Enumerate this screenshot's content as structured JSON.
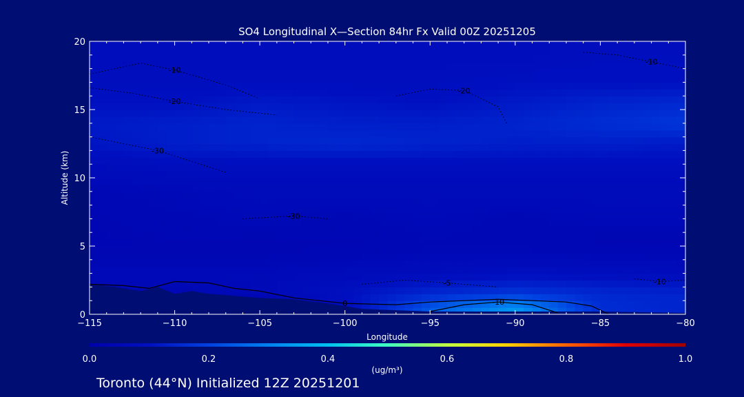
{
  "chart_data": {
    "type": "heatmap",
    "title": "SO4 Longitudinal X—Section 84hr  Fx Valid 00Z 20251205",
    "xlabel": "Longitude",
    "ylabel": "Altitude (km)",
    "xlim": [
      -115,
      -80
    ],
    "ylim": [
      0,
      20
    ],
    "x_ticks": [
      -115,
      -110,
      -105,
      -100,
      -95,
      -90,
      -85,
      -80
    ],
    "x_tick_labels": [
      "−115",
      "−110",
      "−105",
      "−100",
      "−95",
      "−90",
      "−85",
      "−80"
    ],
    "y_ticks": [
      0,
      5,
      10,
      15,
      20
    ],
    "y_tick_labels": [
      "0",
      "5",
      "10",
      "15",
      "20"
    ],
    "grid": false,
    "colorbar": {
      "min": 0.0,
      "max": 1.0,
      "ticks": [
        0.0,
        0.2,
        0.4,
        0.6,
        0.8,
        1.0
      ],
      "tick_labels": [
        "0.0",
        "0.2",
        "0.4",
        "0.6",
        "0.8",
        "1.0"
      ],
      "unit_label": "(ug/m³)",
      "colors": [
        "#0000aa",
        "#0010c0",
        "#0040e0",
        "#0080f0",
        "#00c0f0",
        "#40ffc0",
        "#c0ff40",
        "#ffd000",
        "#ff6000",
        "#e00000",
        "#a00000"
      ]
    },
    "concentration_field": {
      "lons": [
        -115,
        -110,
        -105,
        -100,
        -95,
        -90,
        -85,
        -80
      ],
      "alts": [
        0.5,
        1.5,
        3,
        5,
        7,
        9,
        11,
        12.5,
        14,
        15.5,
        17,
        19
      ],
      "values": [
        [
          0.0,
          0.0,
          0.0,
          0.08,
          0.24,
          0.34,
          0.16,
          0.14
        ],
        [
          0.05,
          0.05,
          0.06,
          0.1,
          0.15,
          0.18,
          0.15,
          0.14
        ],
        [
          0.06,
          0.06,
          0.06,
          0.07,
          0.08,
          0.09,
          0.09,
          0.08
        ],
        [
          0.04,
          0.04,
          0.04,
          0.04,
          0.05,
          0.05,
          0.04,
          0.04
        ],
        [
          0.04,
          0.05,
          0.06,
          0.05,
          0.06,
          0.05,
          0.06,
          0.06
        ],
        [
          0.05,
          0.06,
          0.07,
          0.07,
          0.07,
          0.07,
          0.07,
          0.07
        ],
        [
          0.08,
          0.09,
          0.09,
          0.09,
          0.09,
          0.09,
          0.09,
          0.09
        ],
        [
          0.11,
          0.13,
          0.14,
          0.15,
          0.14,
          0.13,
          0.13,
          0.12
        ],
        [
          0.12,
          0.13,
          0.14,
          0.13,
          0.13,
          0.14,
          0.16,
          0.18
        ],
        [
          0.1,
          0.1,
          0.12,
          0.11,
          0.1,
          0.12,
          0.14,
          0.15
        ],
        [
          0.09,
          0.09,
          0.09,
          0.09,
          0.09,
          0.1,
          0.1,
          0.1
        ],
        [
          0.08,
          0.08,
          0.08,
          0.08,
          0.08,
          0.08,
          0.09,
          0.09
        ]
      ]
    },
    "terrain_km": {
      "lons": [
        -115,
        -113.5,
        -112,
        -111,
        -110,
        -109,
        -108,
        -106,
        -105,
        -103,
        -101,
        -99,
        -97,
        -95,
        -90,
        -85,
        -80
      ],
      "alts": [
        2.2,
        2.0,
        1.7,
        2.0,
        1.5,
        1.7,
        1.5,
        1.3,
        1.2,
        1.1,
        0.8,
        0.4,
        0.3,
        0.2,
        0.2,
        0.2,
        0.1
      ]
    },
    "temperature_contours": [
      {
        "label": "0",
        "style": "solid",
        "lons": [
          -115,
          -113,
          -111.5,
          -110,
          -108,
          -106.5,
          -105,
          -103,
          -100,
          -97,
          -95,
          -93,
          -91,
          -89,
          -87,
          -85.5,
          -84.5
        ],
        "alts": [
          2.2,
          2.1,
          1.9,
          2.4,
          2.3,
          1.9,
          1.7,
          1.2,
          0.8,
          0.7,
          0.9,
          1.0,
          1.1,
          1.0,
          0.9,
          0.6,
          0.0
        ]
      },
      {
        "label": "-10",
        "style": "solid",
        "lons": [
          -95,
          -93,
          -91,
          -89,
          -87.5
        ],
        "alts": [
          0.2,
          0.7,
          0.9,
          0.7,
          0.1
        ]
      },
      {
        "label": "-10",
        "style": "dotted",
        "lons": [
          -115,
          -112,
          -110,
          -107,
          -105
        ],
        "alts": [
          17.6,
          18.4,
          17.9,
          16.8,
          15.8
        ]
      },
      {
        "label": "-10",
        "style": "dotted",
        "lons": [
          -86,
          -84,
          -82,
          -80
        ],
        "alts": [
          19.2,
          19.0,
          18.5,
          18.0
        ]
      },
      {
        "label": "-20",
        "style": "dotted",
        "lons": [
          -115,
          -112.5,
          -110,
          -107,
          -104
        ],
        "alts": [
          16.6,
          16.2,
          15.6,
          15.0,
          14.6
        ]
      },
      {
        "label": "-20",
        "style": "dotted",
        "lons": [
          -97,
          -95,
          -93,
          -91,
          -90.5
        ],
        "alts": [
          16.0,
          16.5,
          16.4,
          15.2,
          14.0
        ]
      },
      {
        "label": "-30",
        "style": "dotted",
        "lons": [
          -115,
          -113,
          -111,
          -109,
          -107
        ],
        "alts": [
          13.0,
          12.5,
          12.0,
          11.2,
          10.4
        ]
      },
      {
        "label": "-10",
        "style": "dotted",
        "lons": [
          -83,
          -81.5,
          -80
        ],
        "alts": [
          2.6,
          2.4,
          2.5
        ]
      },
      {
        "label": "-5",
        "style": "dotted",
        "lons": [
          -99,
          -96.5,
          -94,
          -91
        ],
        "alts": [
          2.2,
          2.5,
          2.3,
          2.0
        ]
      },
      {
        "label": "-30",
        "style": "dotted",
        "lons": [
          -106,
          -104.5,
          -103,
          -101
        ],
        "alts": [
          7.0,
          7.1,
          7.2,
          7.0
        ]
      }
    ]
  },
  "footer": {
    "location_text": "Toronto (44°N) Initialized 12Z 20251201"
  },
  "colors": {
    "background": "#000d73",
    "text": "#ffffff",
    "contour": "#000000"
  }
}
